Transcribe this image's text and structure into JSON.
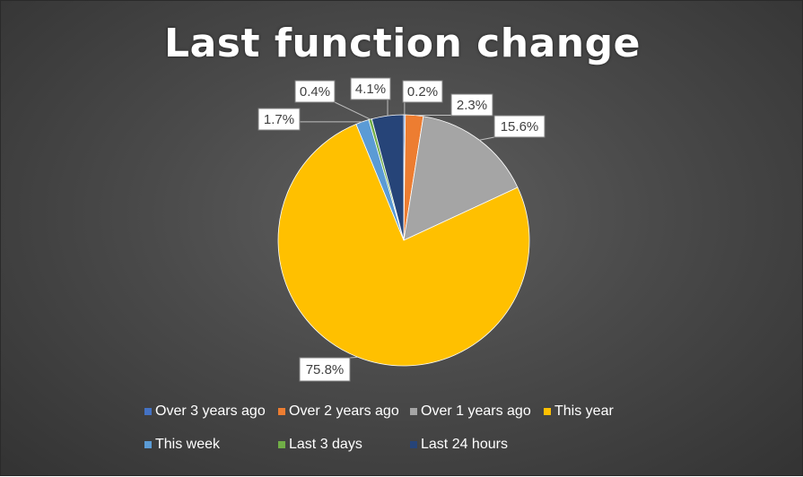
{
  "chart_data": {
    "type": "pie",
    "title": "Last function change",
    "slices": [
      {
        "label": "Over 3 years ago",
        "value": 0.2,
        "display": "0.2%",
        "color": "#4472c4"
      },
      {
        "label": "Over 2 years ago",
        "value": 2.3,
        "display": "2.3%",
        "color": "#ed7d31"
      },
      {
        "label": "Over 1 years ago",
        "value": 15.6,
        "display": "15.6%",
        "color": "#a5a5a5"
      },
      {
        "label": "This year",
        "value": 75.8,
        "display": "75.8%",
        "color": "#ffc000"
      },
      {
        "label": "This week",
        "value": 1.7,
        "display": "1.7%",
        "color": "#5b9bd5"
      },
      {
        "label": "Last 3 days",
        "value": 0.4,
        "display": "0.4%",
        "color": "#70ad47"
      },
      {
        "label": "Last 24 hours",
        "value": 4.1,
        "display": "4.1%",
        "color": "#264478"
      }
    ],
    "legend_position": "bottom",
    "start_angle_deg": 0,
    "direction": "clockwise"
  }
}
